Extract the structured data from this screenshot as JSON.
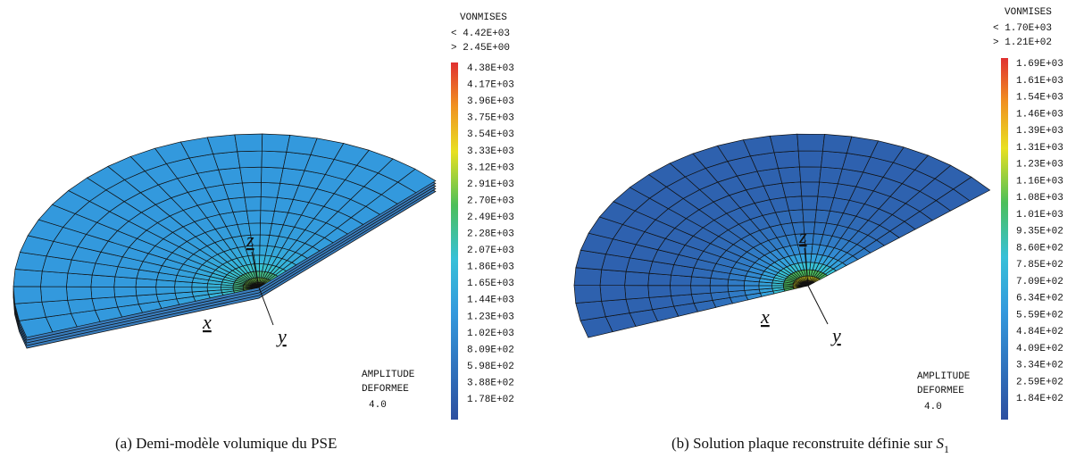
{
  "panels": [
    {
      "legend_title": "VONMISES",
      "max_label": "< 4.42E+03",
      "min_label": "> 2.45E+00",
      "levels": [
        "4.38E+03",
        "4.17E+03",
        "3.96E+03",
        "3.75E+03",
        "3.54E+03",
        "3.33E+03",
        "3.12E+03",
        "2.91E+03",
        "2.70E+03",
        "2.49E+03",
        "2.28E+03",
        "2.07E+03",
        "1.86E+03",
        "1.65E+03",
        "1.44E+03",
        "1.23E+03",
        "1.02E+03",
        "8.09E+02",
        "5.98E+02",
        "3.88E+02",
        "1.78E+02"
      ],
      "amplitude": "AMPLITUDE",
      "deformee": "DEFORMEE",
      "factor": "4.0",
      "axes": {
        "x": "x",
        "y": "y",
        "z": "z"
      },
      "caption": {
        "label": "(a)",
        "text": "Demi-modèle volumique du PSE"
      }
    },
    {
      "legend_title": "VONMISES",
      "max_label": "< 1.70E+03",
      "min_label": "> 1.21E+02",
      "levels": [
        "1.69E+03",
        "1.61E+03",
        "1.54E+03",
        "1.46E+03",
        "1.39E+03",
        "1.31E+03",
        "1.23E+03",
        "1.16E+03",
        "1.08E+03",
        "1.01E+03",
        "9.35E+02",
        "8.60E+02",
        "7.85E+02",
        "7.09E+02",
        "6.34E+02",
        "5.59E+02",
        "4.84E+02",
        "4.09E+02",
        "3.34E+02",
        "2.59E+02",
        "1.84E+02"
      ],
      "amplitude": "AMPLITUDE",
      "deformee": "DEFORMEE",
      "factor": "4.0",
      "axes": {
        "x": "x",
        "y": "y",
        "z": "z"
      },
      "caption": {
        "label": "(b)",
        "text": "Solution plaque reconstruite définie sur",
        "symbol": "S",
        "subscript": "1"
      }
    }
  ]
}
